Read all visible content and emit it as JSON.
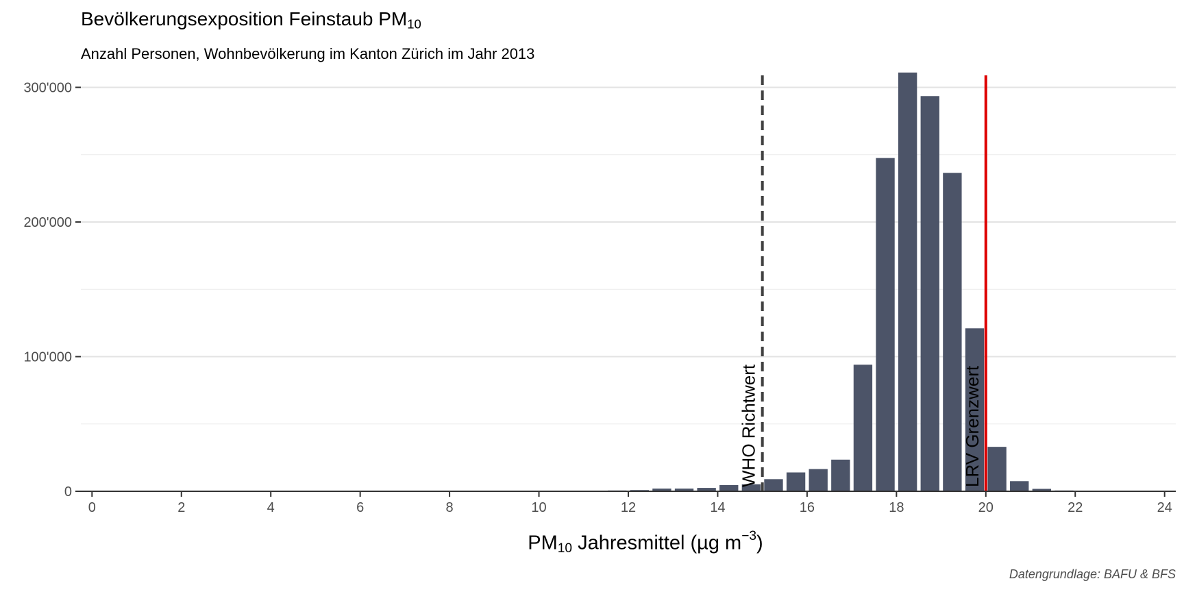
{
  "chart_data": {
    "type": "bar",
    "title_text": "Bevölkerungsexposition Feinstaub PM",
    "title_sub": "10",
    "subtitle": "Anzahl Personen, Wohnbevölkerung im Kanton Zürich im Jahr 2013",
    "xlabel_pre": "PM",
    "xlabel_sub": "10",
    "xlabel_mid": " Jahresmittel (µg m",
    "xlabel_sup": "−3",
    "xlabel_post": ")",
    "ylabel": "",
    "caption": "Datengrundlage: BAFU & BFS",
    "xlim": [
      -0.25,
      24.25
    ],
    "ylim": [
      0,
      315000
    ],
    "bar_width": 0.45,
    "x_ticks": [
      "0",
      "2",
      "4",
      "6",
      "8",
      "10",
      "12",
      "14",
      "16",
      "18",
      "20",
      "22",
      "24"
    ],
    "y_ticks": [
      {
        "value": 0,
        "label": "0"
      },
      {
        "value": 100000,
        "label": "100'000"
      },
      {
        "value": 200000,
        "label": "200'000"
      },
      {
        "value": 300000,
        "label": "300'000"
      }
    ],
    "x": [
      10.75,
      11.25,
      11.75,
      12.25,
      12.75,
      13.25,
      13.75,
      14.25,
      14.75,
      15.25,
      15.75,
      16.25,
      16.75,
      17.25,
      17.75,
      18.25,
      18.75,
      19.25,
      19.75,
      20.25,
      20.75,
      21.25,
      21.75
    ],
    "values": [
      300,
      500,
      600,
      900,
      2000,
      2000,
      2500,
      4600,
      5200,
      9000,
      14000,
      16500,
      23500,
      94000,
      247500,
      311000,
      293500,
      236500,
      121000,
      33000,
      7500,
      1800,
      600
    ],
    "bar_color": "#4c5468",
    "grid": true,
    "reference_lines": [
      {
        "value": 15,
        "label": "WHO Richtwert",
        "color": "#404040",
        "style": "dashed"
      },
      {
        "value": 20,
        "label": "LRV Grenzwert",
        "color": "#dd0000",
        "style": "solid"
      }
    ]
  }
}
